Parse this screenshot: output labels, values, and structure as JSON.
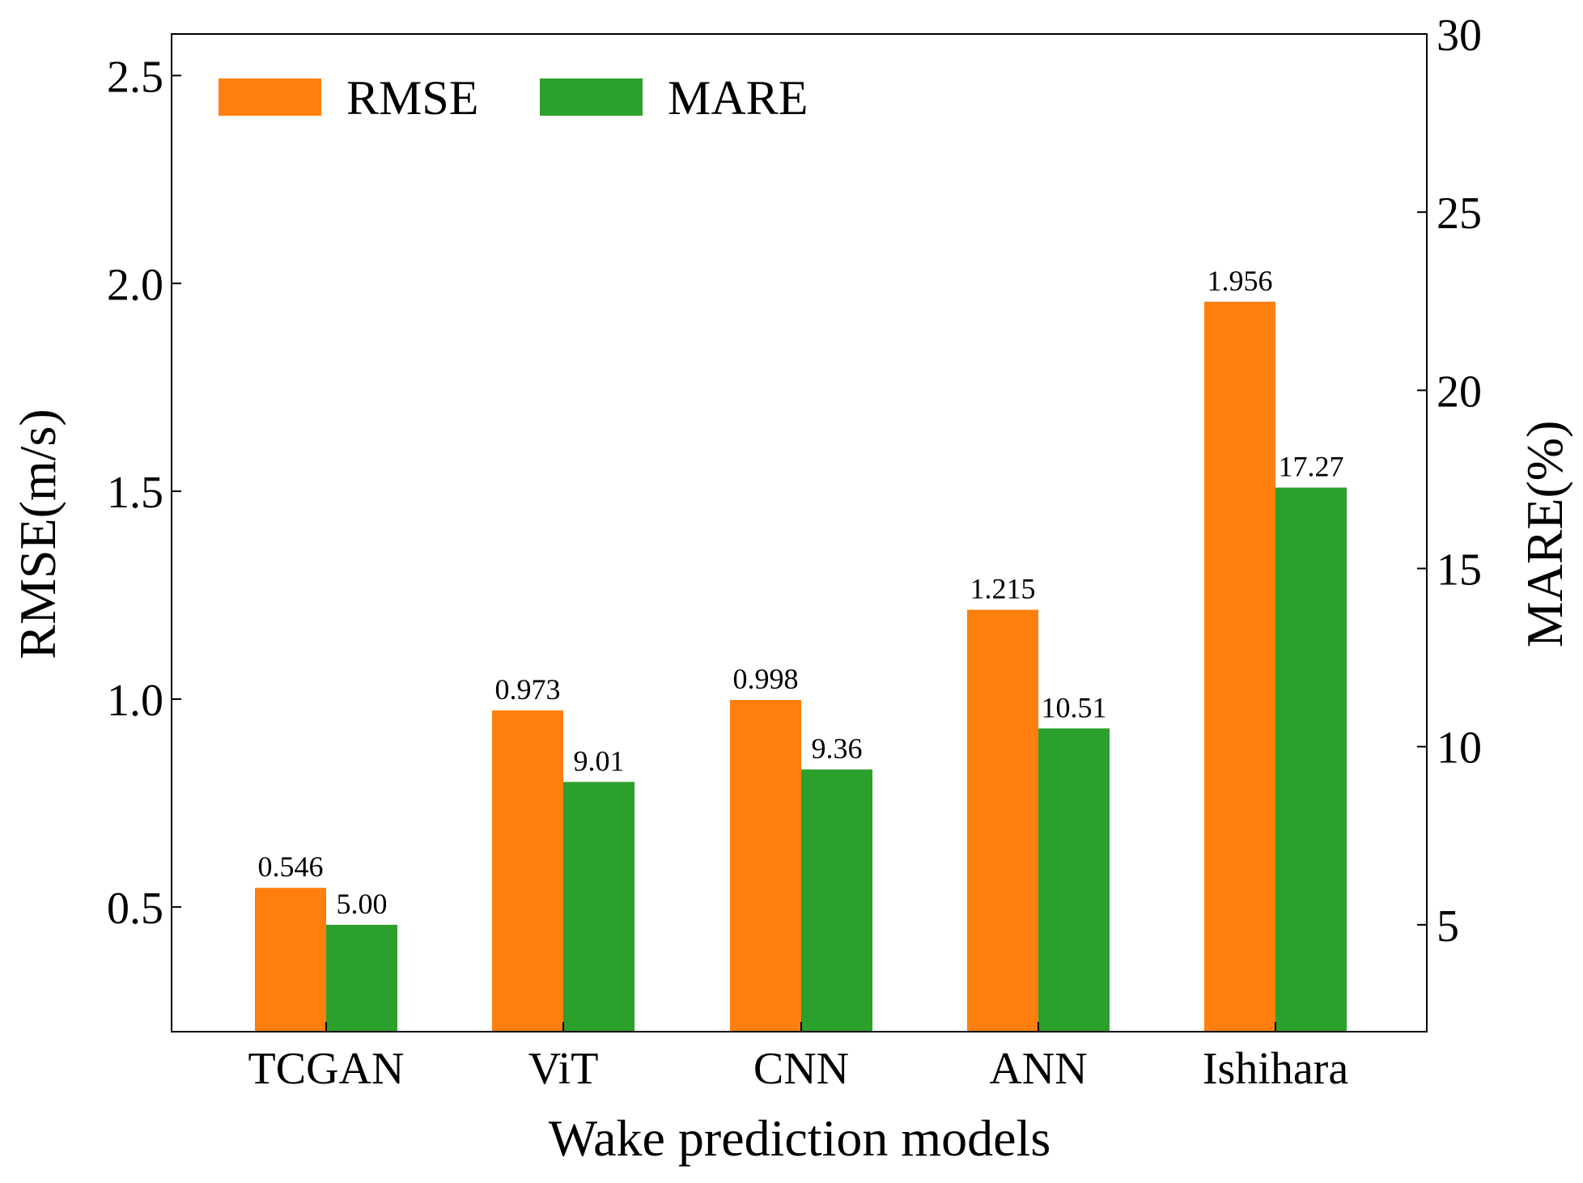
{
  "chart_data": {
    "type": "bar",
    "categories": [
      "TCGAN",
      "ViT",
      "CNN",
      "ANN",
      "Ishihara"
    ],
    "series": [
      {
        "name": "RMSE",
        "axis": "left",
        "color": "#ff7f0e",
        "values": [
          0.546,
          0.973,
          0.998,
          1.215,
          1.956
        ],
        "labels": [
          "0.546",
          "0.973",
          "0.998",
          "1.215",
          "1.956"
        ]
      },
      {
        "name": "MARE",
        "axis": "right",
        "color": "#2ca02c",
        "values": [
          5.0,
          9.01,
          9.36,
          10.51,
          17.27
        ],
        "labels": [
          "5.00",
          "9.01",
          "9.36",
          "10.51",
          "17.27"
        ]
      }
    ],
    "xlabel": "Wake prediction models",
    "ylabel": "RMSE(m/s)",
    "y2label": "MARE(%)",
    "ylim": [
      0.2,
      2.6
    ],
    "y2lim": [
      2,
      30
    ],
    "yticks": [
      "0.5",
      "1.0",
      "1.5",
      "2.0",
      "2.5"
    ],
    "y2ticks": [
      "5",
      "10",
      "15",
      "20",
      "25",
      "30"
    ],
    "grid": false,
    "legend": "top-left"
  }
}
